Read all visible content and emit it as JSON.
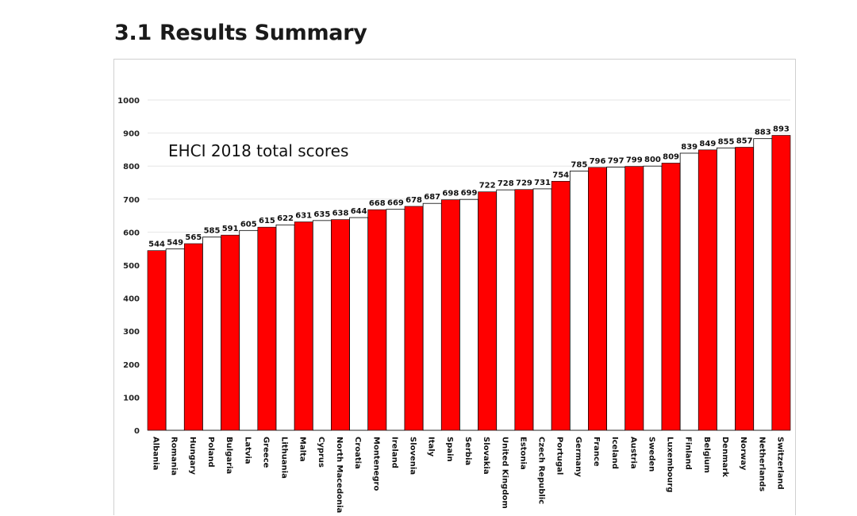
{
  "page": {
    "section_number": "3.1",
    "section_title": "Results Summary"
  },
  "chart_data": {
    "type": "bar",
    "title": "EHCI 2018 total scores",
    "xlabel": "",
    "ylabel": "",
    "ylim": [
      0,
      1000
    ],
    "yticks": [
      0,
      100,
      200,
      300,
      400,
      500,
      600,
      700,
      800,
      900,
      1000
    ],
    "grid": true,
    "legend": "none",
    "colors": {
      "odd": "#ff0000",
      "even": "#ffffff",
      "outline": "#000000"
    },
    "categories": [
      "Albania",
      "Romania",
      "Hungary",
      "Poland",
      "Bulgaria",
      "Latvia",
      "Greece",
      "Lithuania",
      "Malta",
      "Cyprus",
      "North Macedonia",
      "Croatia",
      "Montenegro",
      "Ireland",
      "Slovenia",
      "Italy",
      "Spain",
      "Serbia",
      "Slovakia",
      "United Kingdom",
      "Estonia",
      "Czech Republic",
      "Portugal",
      "Germany",
      "France",
      "Iceland",
      "Austria",
      "Sweden",
      "Luxembourg",
      "Finland",
      "Belgium",
      "Denmark",
      "Norway",
      "Netherlands",
      "Switzerland"
    ],
    "values": [
      544,
      549,
      565,
      585,
      591,
      605,
      615,
      622,
      631,
      635,
      638,
      644,
      668,
      669,
      678,
      687,
      698,
      699,
      722,
      728,
      729,
      731,
      754,
      785,
      796,
      797,
      799,
      800,
      809,
      839,
      849,
      855,
      857,
      883,
      893
    ]
  }
}
